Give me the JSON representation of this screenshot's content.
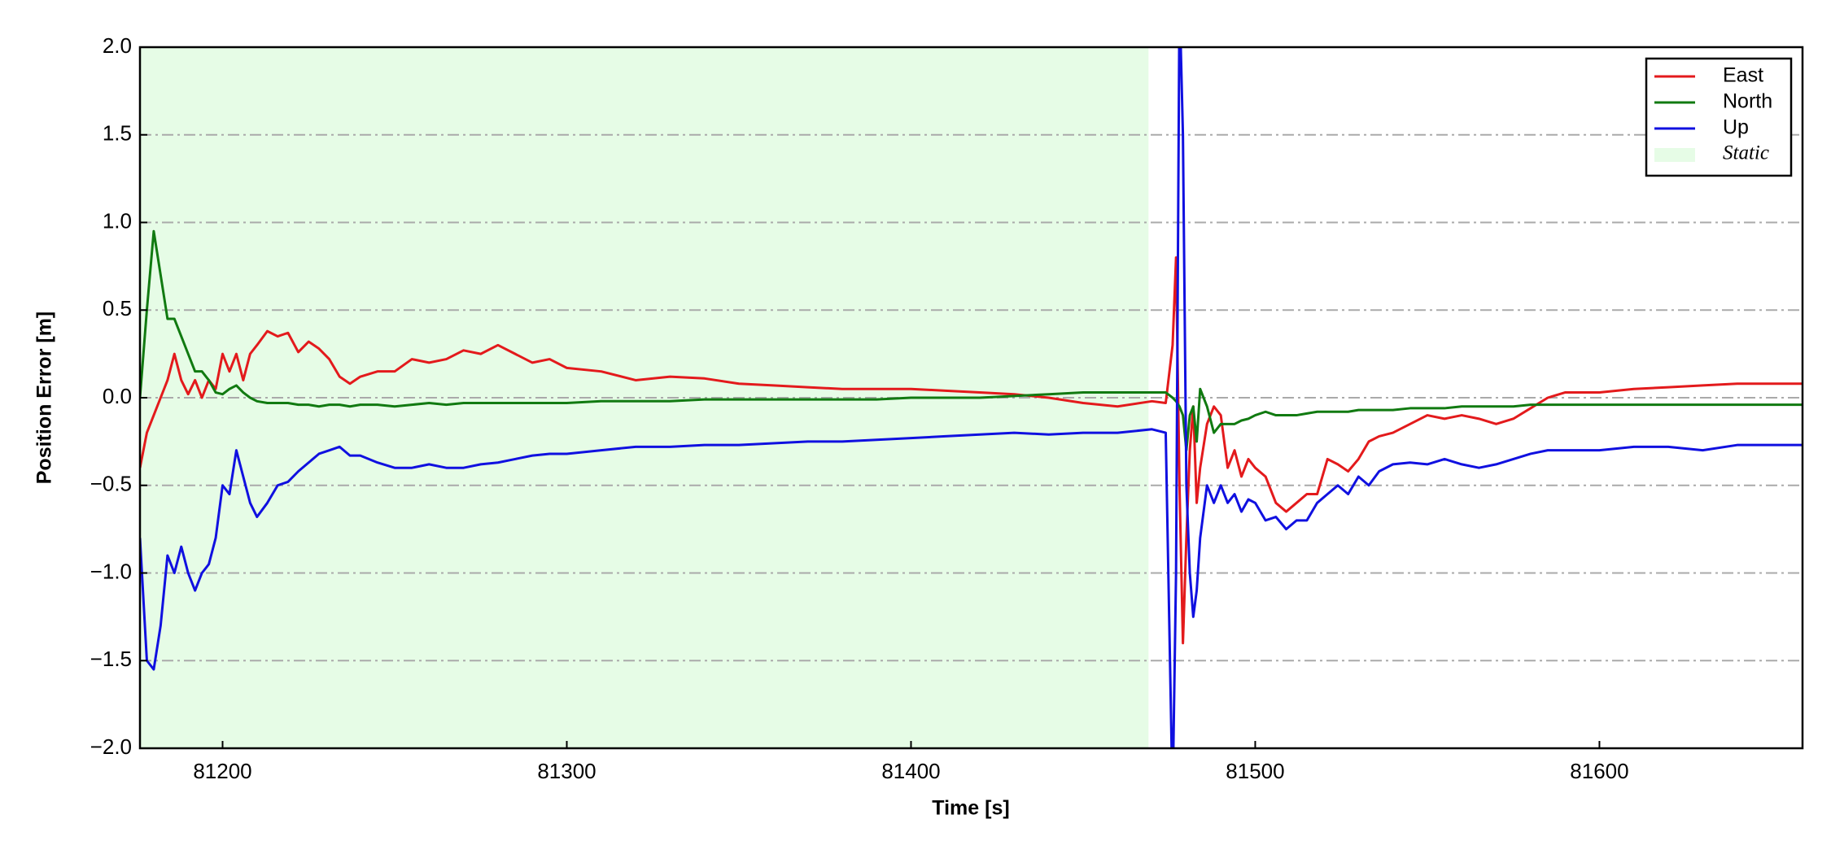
{
  "chart_data": {
    "type": "line",
    "xlabel": "Time [s]",
    "ylabel": "Position Error [m]",
    "x": [
      81176,
      81178,
      81180,
      81182,
      81184,
      81186,
      81188,
      81190,
      81192,
      81194,
      81196,
      81198,
      81200,
      81202,
      81204,
      81206,
      81208,
      81210,
      81213,
      81216,
      81219,
      81222,
      81225,
      81228,
      81231,
      81234,
      81237,
      81240,
      81245,
      81250,
      81255,
      81260,
      81265,
      81270,
      81275,
      81280,
      81285,
      81290,
      81295,
      81300,
      81310,
      81320,
      81330,
      81340,
      81350,
      81360,
      81370,
      81380,
      81390,
      81400,
      81410,
      81420,
      81430,
      81440,
      81450,
      81460,
      81470,
      81474,
      81476,
      81477,
      81478,
      81479,
      81480,
      81481,
      81482,
      81483,
      81484,
      81486,
      81488,
      81490,
      81492,
      81494,
      81496,
      81498,
      81500,
      81503,
      81506,
      81509,
      81512,
      81515,
      81518,
      81521,
      81524,
      81527,
      81530,
      81533,
      81536,
      81540,
      81545,
      81550,
      81555,
      81560,
      81565,
      81570,
      81575,
      81580,
      81585,
      81590,
      81600,
      81610,
      81620,
      81630,
      81640,
      81650,
      81659
    ],
    "series": [
      {
        "name": "East",
        "color": "#e31a1c",
        "values": [
          -0.4,
          -0.2,
          -0.1,
          0.0,
          0.1,
          0.25,
          0.1,
          0.02,
          0.1,
          0.0,
          0.1,
          0.05,
          0.25,
          0.15,
          0.25,
          0.1,
          0.25,
          0.3,
          0.38,
          0.35,
          0.37,
          0.26,
          0.32,
          0.28,
          0.22,
          0.12,
          0.08,
          0.12,
          0.15,
          0.15,
          0.22,
          0.2,
          0.22,
          0.27,
          0.25,
          0.3,
          0.25,
          0.2,
          0.22,
          0.17,
          0.15,
          0.1,
          0.12,
          0.11,
          0.08,
          0.07,
          0.06,
          0.05,
          0.05,
          0.05,
          0.04,
          0.03,
          0.02,
          0.0,
          -0.03,
          -0.05,
          -0.02,
          -0.03,
          0.3,
          0.8,
          -0.5,
          -1.4,
          -0.8,
          -0.3,
          -0.05,
          -0.6,
          -0.4,
          -0.15,
          -0.05,
          -0.1,
          -0.4,
          -0.3,
          -0.45,
          -0.35,
          -0.4,
          -0.45,
          -0.6,
          -0.65,
          -0.6,
          -0.55,
          -0.55,
          -0.35,
          -0.38,
          -0.42,
          -0.35,
          -0.25,
          -0.22,
          -0.2,
          -0.15,
          -0.1,
          -0.12,
          -0.1,
          -0.12,
          -0.15,
          -0.12,
          -0.06,
          0.0,
          0.03,
          0.03,
          0.05,
          0.06,
          0.07,
          0.08,
          0.08,
          0.08
        ]
      },
      {
        "name": "North",
        "color": "#117a11",
        "values": [
          0.0,
          0.5,
          0.95,
          0.7,
          0.45,
          0.45,
          0.35,
          0.25,
          0.15,
          0.15,
          0.1,
          0.03,
          0.02,
          0.05,
          0.07,
          0.03,
          0.0,
          -0.02,
          -0.03,
          -0.03,
          -0.03,
          -0.04,
          -0.04,
          -0.05,
          -0.04,
          -0.04,
          -0.05,
          -0.04,
          -0.04,
          -0.05,
          -0.04,
          -0.03,
          -0.04,
          -0.03,
          -0.03,
          -0.03,
          -0.03,
          -0.03,
          -0.03,
          -0.03,
          -0.02,
          -0.02,
          -0.02,
          -0.01,
          -0.01,
          -0.01,
          -0.01,
          -0.01,
          -0.01,
          0.0,
          0.0,
          0.0,
          0.01,
          0.02,
          0.03,
          0.03,
          0.03,
          0.03,
          0.0,
          -0.02,
          -0.05,
          -0.1,
          -0.3,
          -0.1,
          -0.05,
          -0.25,
          0.05,
          -0.05,
          -0.2,
          -0.15,
          -0.15,
          -0.15,
          -0.13,
          -0.12,
          -0.1,
          -0.08,
          -0.1,
          -0.1,
          -0.1,
          -0.09,
          -0.08,
          -0.08,
          -0.08,
          -0.08,
          -0.07,
          -0.07,
          -0.07,
          -0.07,
          -0.06,
          -0.06,
          -0.06,
          -0.05,
          -0.05,
          -0.05,
          -0.05,
          -0.04,
          -0.04,
          -0.04,
          -0.04,
          -0.04,
          -0.04,
          -0.04,
          -0.04,
          -0.04,
          -0.04
        ]
      },
      {
        "name": "Up",
        "color": "#1010e0",
        "values": [
          -0.8,
          -1.5,
          -1.55,
          -1.3,
          -0.9,
          -1.0,
          -0.85,
          -1.0,
          -1.1,
          -1.0,
          -0.95,
          -0.8,
          -0.5,
          -0.55,
          -0.3,
          -0.45,
          -0.6,
          -0.68,
          -0.6,
          -0.5,
          -0.48,
          -0.42,
          -0.37,
          -0.32,
          -0.3,
          -0.28,
          -0.33,
          -0.33,
          -0.37,
          -0.4,
          -0.4,
          -0.38,
          -0.4,
          -0.4,
          -0.38,
          -0.37,
          -0.35,
          -0.33,
          -0.32,
          -0.32,
          -0.3,
          -0.28,
          -0.28,
          -0.27,
          -0.27,
          -0.26,
          -0.25,
          -0.25,
          -0.24,
          -0.23,
          -0.22,
          -0.21,
          -0.2,
          -0.21,
          -0.2,
          -0.2,
          -0.18,
          -0.2,
          -2.3,
          -1.0,
          2.3,
          1.5,
          -0.5,
          -1.0,
          -1.25,
          -1.1,
          -0.8,
          -0.5,
          -0.6,
          -0.5,
          -0.6,
          -0.55,
          -0.65,
          -0.58,
          -0.6,
          -0.7,
          -0.68,
          -0.75,
          -0.7,
          -0.7,
          -0.6,
          -0.55,
          -0.5,
          -0.55,
          -0.45,
          -0.5,
          -0.42,
          -0.38,
          -0.37,
          -0.38,
          -0.35,
          -0.38,
          -0.4,
          -0.38,
          -0.35,
          -0.32,
          -0.3,
          -0.3,
          -0.3,
          -0.28,
          -0.28,
          -0.3,
          -0.27,
          -0.27,
          -0.27
        ]
      }
    ],
    "spans": [
      {
        "name": "Static",
        "color": "#e6fce6",
        "x": [
          81176,
          81469
        ]
      }
    ],
    "xlim": [
      81176,
      81659
    ],
    "xticks": [
      81200,
      81300,
      81400,
      81500,
      81600
    ],
    "ylim": [
      -2,
      2
    ],
    "yticks": [
      {
        "value": -2,
        "label": "−2.0"
      },
      {
        "value": -1.5,
        "label": "−1.5"
      },
      {
        "value": -1,
        "label": "−1.0"
      },
      {
        "value": -0.5,
        "label": "−0.5"
      },
      {
        "value": 0,
        "label": "0.0"
      },
      {
        "value": 0.5,
        "label": "0.5"
      },
      {
        "value": 1,
        "label": "1.0"
      },
      {
        "value": 1.5,
        "label": "1.5"
      },
      {
        "value": 2,
        "label": "2.0"
      }
    ],
    "grid": "y",
    "legend": "upper right"
  }
}
